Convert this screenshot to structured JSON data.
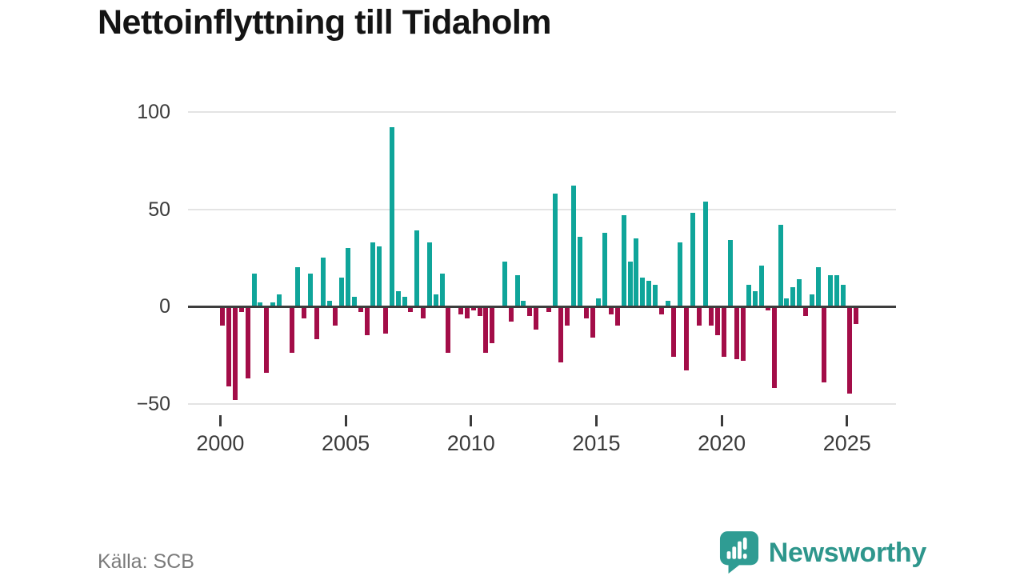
{
  "title": "Nettoinflyttning till Tidaholm",
  "source": "Källa: SCB",
  "branding": {
    "logo_text": "Newsworthy"
  },
  "colors": {
    "positive_bar": "#0fa59a",
    "negative_bar": "#a30d48",
    "zero_axis": "#3d3d3d",
    "gridline": "#e4e4e4",
    "axis_text": "#3b3b3b",
    "title_text": "#141414",
    "source_text": "#7a7a7a",
    "brand_teal": "#2e968c"
  },
  "chart_data": {
    "type": "bar",
    "title": "Nettoinflyttning till Tidaholm",
    "xlabel": "",
    "ylabel": "",
    "frequency": "quarterly",
    "start_period": "2000-Q1",
    "end_period": "2025-Q2",
    "values": [
      -10,
      -41,
      -48,
      -3,
      -37,
      17,
      2,
      -34,
      2,
      6,
      0,
      -24,
      20,
      -6,
      17,
      -17,
      25,
      3,
      -10,
      15,
      30,
      5,
      -3,
      -15,
      33,
      31,
      -14,
      92,
      8,
      5,
      -3,
      39,
      -6,
      33,
      6,
      17,
      -24,
      0,
      -4,
      -6,
      -2,
      -5,
      -24,
      -19,
      0,
      23,
      -8,
      16,
      3,
      -5,
      -12,
      0,
      -3,
      58,
      -29,
      -10,
      62,
      36,
      -6,
      -16,
      4,
      38,
      -4,
      -10,
      47,
      23,
      35,
      15,
      13,
      11,
      -4,
      3,
      -26,
      33,
      -33,
      48,
      -10,
      54,
      -10,
      -15,
      -26,
      34,
      -27,
      -28,
      11,
      8,
      21,
      -2,
      -42,
      42,
      4,
      10,
      14,
      -5,
      6,
      20,
      -39,
      16,
      16,
      11,
      -45,
      -9
    ],
    "positive_color_meaning": "net in-migration",
    "negative_color_meaning": "net out-migration",
    "yticks": [
      100,
      50,
      0,
      -50
    ],
    "ylim": [
      -50,
      100
    ],
    "xticks": [
      "2000",
      "2005",
      "2010",
      "2015",
      "2020",
      "2025"
    ],
    "xtick_interval_quarters": 20,
    "grid": true,
    "legend": false
  }
}
